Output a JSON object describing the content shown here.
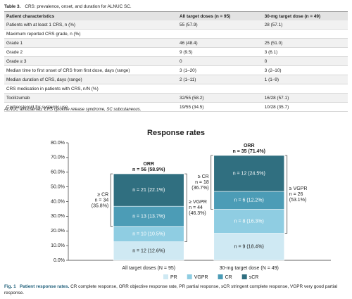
{
  "table": {
    "label": "Table 3.",
    "title": "CRS: prevalence, onset, and duration for ALNUC SC.",
    "headers": [
      "Patient characteristics",
      "All target doses (n = 95)",
      "30-mg target dose (n = 49)"
    ],
    "rows": [
      [
        "Patients with at least 1 CRS, n (%)",
        "55 (57.9)",
        "28 (57.1)"
      ],
      [
        "Maximum reported CRS grade, n (%)"
      ],
      [
        "Grade 1",
        "46 (48.4)",
        "25 (51.0)"
      ],
      [
        "Grade 2",
        "9 (9.5)",
        "3 (6.1)"
      ],
      [
        "Grade ≥ 3",
        "0",
        "0"
      ],
      [
        "Median time to first onset of CRS from first dose, days (range)",
        "3 (1–20)",
        "3 (2–10)"
      ],
      [
        "Median duration of CRS, days (range)",
        "2 (1–11)",
        "1 (1–9)"
      ],
      [
        "CRS medication in patients with CRS, n/N (%)"
      ],
      [
        "Tocilizumab",
        "32/55 (58.2)",
        "16/28 (57.1)"
      ],
      [
        "Corticosteroid for systemic use",
        "19/55 (34.5)",
        "10/28 (35.7)"
      ]
    ],
    "footnote": "ALNUC alnuctamab, CRS cytokine release syndrome, SC subcutaneous."
  },
  "chart_data": {
    "type": "stacked_bar",
    "title": "Response rates",
    "categories": [
      "All target doses (N = 95)",
      "30-mg target dose (N = 49)"
    ],
    "series": [
      {
        "name": "PR",
        "color": "#cfe9f3",
        "label_color": "#222222",
        "values": [
          12.6,
          18.4
        ],
        "value_labels": [
          "n = 12 (12.6%)",
          "n = 9 (18.4%)"
        ]
      },
      {
        "name": "VGPR",
        "color": "#8fcde2",
        "label_color": "#ffffff",
        "values": [
          10.5,
          16.3
        ],
        "value_labels": [
          "n = 10 (10.5%)",
          "n = 8 (16.3%)"
        ]
      },
      {
        "name": "CR",
        "color": "#4c9cb6",
        "label_color": "#ffffff",
        "values": [
          13.7,
          12.2
        ],
        "value_labels": [
          "n = 13 (13.7%)",
          "n = 6 (12.2%)"
        ]
      },
      {
        "name": "sCR",
        "color": "#306f80",
        "label_color": "#ffffff",
        "values": [
          22.1,
          24.5
        ],
        "value_labels": [
          "n = 21 (22.1%)",
          "n = 12 (24.5%)"
        ]
      }
    ],
    "annotations": [
      {
        "orr_label": "ORR",
        "orr": "n = 56 (58.9%)",
        "cr_label": "≥ CR",
        "cr": "n = 34",
        "cr_pct": "(35.8%)",
        "vgpr_label": "≥ VGPR",
        "vgpr": "n = 44",
        "vgpr_pct": "(46.3%)"
      },
      {
        "orr_label": "ORR",
        "orr": "n = 35 (71.4%)",
        "cr_label": "≥ CR",
        "cr": "n = 18",
        "cr_pct": "(36.7%)",
        "vgpr_label": "≥ VGPR",
        "vgpr": "n = 26",
        "vgpr_pct": "(53.1%)"
      }
    ],
    "ylim": [
      0,
      80
    ],
    "yticks": [
      {
        "value": 0,
        "label": "0.0%"
      },
      {
        "value": 10,
        "label": "10.0%"
      },
      {
        "value": 20,
        "label": "20.0%"
      },
      {
        "value": 30,
        "label": "30.0%"
      },
      {
        "value": 40,
        "label": "40.0%"
      },
      {
        "value": 50,
        "label": "50.0%"
      },
      {
        "value": 60,
        "label": "60.0%"
      },
      {
        "value": 70,
        "label": "70.0%"
      },
      {
        "value": 80,
        "label": "80.0%"
      }
    ],
    "legend": "bottom"
  },
  "caption": {
    "label": "Fig. 1",
    "title": "Patient response rates.",
    "text": "CR complete response, ORR objective response rate, PR partial response, sCR stringent complete response, VGPR very good partial response."
  }
}
